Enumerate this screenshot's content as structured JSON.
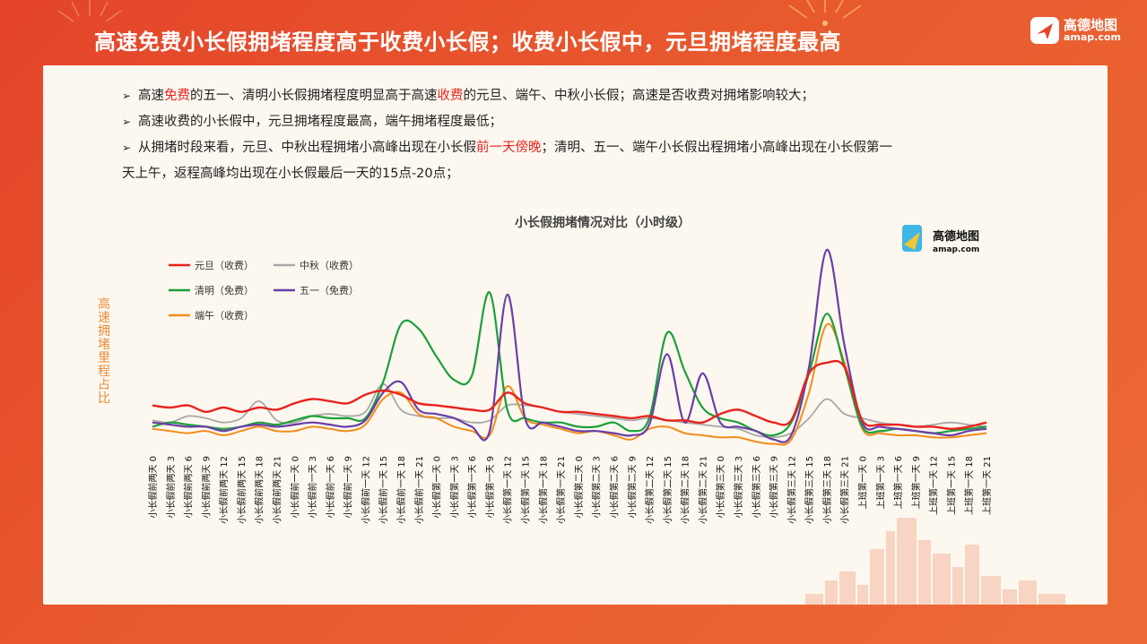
{
  "header": {
    "title": "高速免费小长假拥堵程度高于收费小长假；收费小长假中，元旦拥堵程度最高",
    "logo_cn": "高德地图",
    "logo_en": "amap.com"
  },
  "bullets": [
    {
      "segments": [
        {
          "t": "高速",
          "red": false
        },
        {
          "t": "免费",
          "red": true
        },
        {
          "t": "的五一、清明小长假拥堵程度明显高于高速",
          "red": false
        },
        {
          "t": "收费",
          "red": true
        },
        {
          "t": "的元旦、端午、中秋小长假；高速是否收费对拥堵影响较大；",
          "red": false
        }
      ]
    },
    {
      "segments": [
        {
          "t": "高速收费的小长假中，元旦拥堵程度最高，端午拥堵程度最低；",
          "red": false
        }
      ]
    },
    {
      "segments": [
        {
          "t": "从拥堵时段来看，元旦、中秋出程拥堵小高峰出现在小长假",
          "red": false
        },
        {
          "t": "前一天傍晚",
          "red": true
        },
        {
          "t": "；清明、五一、端午小长假出程拥堵小高峰出现在小长假第一",
          "red": false
        }
      ],
      "cont": "天上午，返程高峰均出现在小长假最后一天的15点-20点；"
    }
  ],
  "colors": {
    "accent": "#e8231f",
    "bg": "#fdf8ef",
    "header": "#e4442a"
  },
  "chart_data": {
    "type": "line",
    "title": "小长假拥堵情况对比（小时级）",
    "ylabel": "高速拥堵里程占比",
    "xlabel": "",
    "legend_position": "top-left",
    "watermark": "高德地图 amap.com",
    "grid": false,
    "y_axis_visible": false,
    "ylim": [
      0,
      100
    ],
    "tick_labels": [
      "小长假前两天 0",
      "小长假前两天 3",
      "小长假前两天 6",
      "小长假前两天 9",
      "小长假前两天 12",
      "小长假前两天 15",
      "小长假前两天 18",
      "小长假前两天 21",
      "小长假前一天 0",
      "小长假前一天 3",
      "小长假前一天 6",
      "小长假前一天 9",
      "小长假前一天 12",
      "小长假前一天 15",
      "小长假前一天 18",
      "小长假前一天 21",
      "小长假第一天 0",
      "小长假第一天 3",
      "小长假第一天 6",
      "小长假第一天 9",
      "小长假第一天 12",
      "小长假第一天 15",
      "小长假第一天 18",
      "小长假第一天 21",
      "小长假第二天 0",
      "小长假第二天 3",
      "小长假第二天 6",
      "小长假第二天 9",
      "小长假第二天 12",
      "小长假第二天 15",
      "小长假第二天 18",
      "小长假第二天 21",
      "小长假第三天 0",
      "小长假第三天 3",
      "小长假第三天 6",
      "小长假第三天 9",
      "小长假第三天 12",
      "小长假第三天 15",
      "小长假第三天 18",
      "小长假第三天 21",
      "上班第一天 0",
      "上班第一天 3",
      "上班第一天 6",
      "上班第一天 9",
      "上班第一天 12",
      "上班第一天 15",
      "上班第一天 18",
      "上班第一天 21"
    ],
    "series": [
      {
        "name": "元旦（收费）",
        "color": "#e8231f",
        "width": 2.4,
        "values": [
          22,
          21,
          22,
          19,
          21,
          19,
          21,
          20,
          23,
          25,
          24,
          23,
          27,
          29,
          27,
          23,
          22,
          21,
          20,
          20,
          28,
          23,
          21,
          19,
          19,
          18,
          17,
          16,
          17,
          15,
          15,
          14,
          18,
          20,
          17,
          14,
          15,
          37,
          42,
          40,
          15,
          13,
          13,
          12,
          12,
          11,
          12,
          14
        ]
      },
      {
        "name": "中秋（收费）",
        "color": "#a8a8a8",
        "width": 1.8,
        "values": [
          15,
          14,
          17,
          16,
          14,
          16,
          24,
          15,
          14,
          17,
          18,
          17,
          19,
          32,
          20,
          17,
          16,
          16,
          14,
          15,
          22,
          22,
          21,
          19,
          18,
          17,
          16,
          15,
          16,
          15,
          14,
          13,
          12,
          11,
          8,
          7,
          9,
          16,
          25,
          18,
          16,
          14,
          13,
          12,
          13,
          14,
          13,
          12
        ]
      },
      {
        "name": "清明（免费）",
        "color": "#1ba03a",
        "width": 2.2,
        "values": [
          12,
          14,
          13,
          12,
          11,
          12,
          14,
          13,
          15,
          17,
          16,
          16,
          16,
          33,
          60,
          58,
          45,
          34,
          36,
          75,
          20,
          16,
          14,
          14,
          12,
          12,
          14,
          10,
          16,
          56,
          38,
          21,
          16,
          14,
          10,
          8,
          14,
          37,
          65,
          40,
          12,
          10,
          11,
          10,
          9,
          10,
          11,
          12
        ]
      },
      {
        "name": "五一（免费）",
        "color": "#6a3ea8",
        "width": 2.2,
        "values": [
          14,
          13,
          12,
          12,
          10,
          12,
          13,
          12,
          13,
          14,
          13,
          12,
          15,
          28,
          33,
          20,
          18,
          16,
          12,
          10,
          74,
          16,
          14,
          12,
          10,
          10,
          9,
          8,
          13,
          46,
          14,
          37,
          14,
          12,
          10,
          6,
          8,
          40,
          95,
          50,
          14,
          12,
          11,
          10,
          9,
          8,
          10,
          11
        ]
      },
      {
        "name": "端午（收费）",
        "color": "#f28c1c",
        "width": 2.0,
        "values": [
          11,
          10,
          9,
          10,
          8,
          10,
          12,
          10,
          10,
          12,
          11,
          10,
          13,
          25,
          28,
          18,
          16,
          12,
          10,
          8,
          31,
          16,
          13,
          11,
          9,
          10,
          8,
          6,
          11,
          12,
          9,
          8,
          7,
          7,
          5,
          4,
          6,
          28,
          60,
          42,
          11,
          9,
          8,
          8,
          7,
          7,
          8,
          9
        ]
      }
    ]
  }
}
